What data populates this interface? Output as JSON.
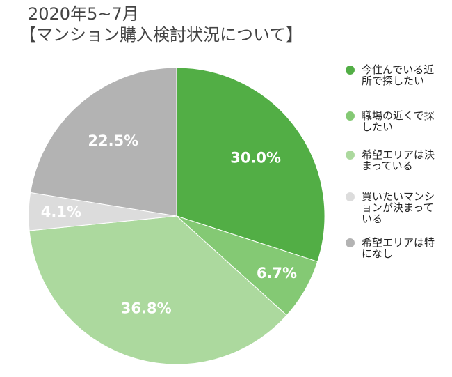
{
  "chart_data": {
    "type": "pie",
    "title": "2020年5~7月",
    "subtitle": "【マンション購入検討状況について】",
    "categories": [
      "今住んでいる近所で探したい",
      "職場の近くで探したい",
      "希望エリアは決まっている",
      "買いたいマンションが決まっている",
      "希望エリアは特になし"
    ],
    "values": [
      30.0,
      6.7,
      36.8,
      4.1,
      22.5
    ],
    "value_labels": [
      "30.0%",
      "6.7%",
      "36.8%",
      "4.1%",
      "22.5%"
    ],
    "colors": [
      "#52ae45",
      "#84c974",
      "#acd99e",
      "#dcdcdc",
      "#b3b3b3"
    ],
    "legend": "right"
  }
}
